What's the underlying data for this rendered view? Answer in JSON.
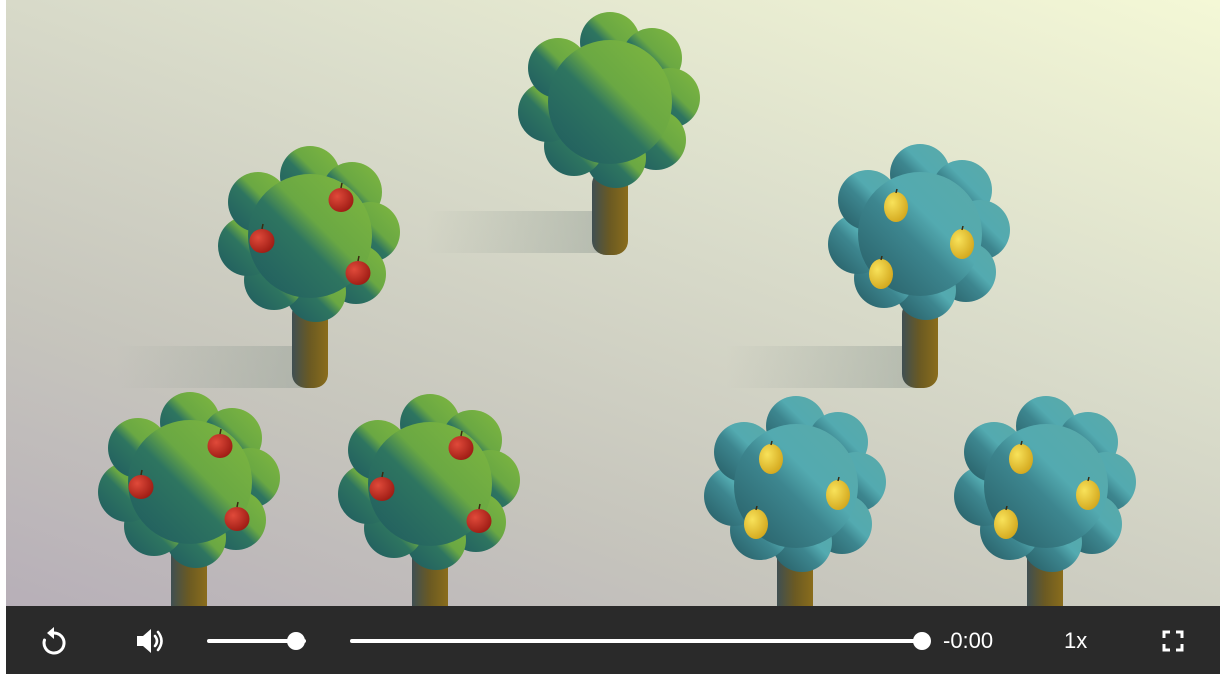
{
  "scene": {
    "description_icons": [
      "plain-tree-icon",
      "apple-tree-icon",
      "lemon-tree-icon"
    ],
    "colors": {
      "canopy_green": "#7cb342",
      "canopy_teal_dark": "#255f62",
      "canopy_blue": "#55abb0",
      "trunk": "#7a6420",
      "apple": "#c62828",
      "lemon": "#f0cf38"
    }
  },
  "controls": {
    "replay_icon": "replay-icon",
    "volume_icon": "volume-icon",
    "volume_level": 0.9,
    "progress": 1.0,
    "time_remaining": "-0:00",
    "speed": "1x",
    "fullscreen_icon": "fullscreen-icon"
  }
}
